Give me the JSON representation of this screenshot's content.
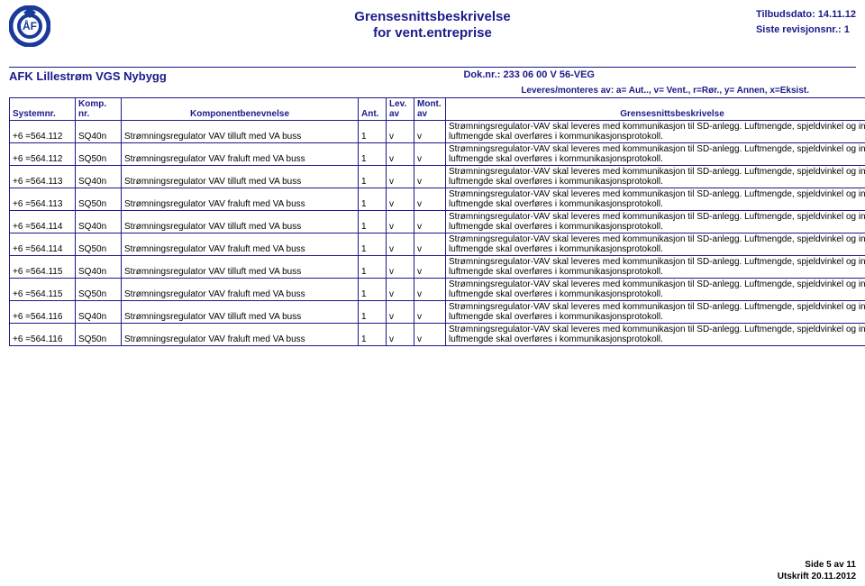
{
  "brand_color": "#1a1a8a",
  "header": {
    "title_line1": "Grensesnittsbeskrivelse",
    "title_line2": "for vent.entreprise",
    "tilbud_label": "Tilbudsdato: 14.11.12",
    "revisjon_label": "Siste revisjonsnr.: 1"
  },
  "subheader": {
    "project": "AFK Lillestrøm VGS Nybygg",
    "doknr": "Dok.nr.: 233 06 00 V 56-VEG"
  },
  "legend": "Leveres/monteres av: a= Aut.., v= Vent., r=Rør., y= Annen, x=Eksist.",
  "columns": {
    "systemnr": "Systemnr.",
    "kompnr_l1": "Komp.",
    "kompnr_l2": "nr.",
    "benevnelse": "Komponentbenevnelse",
    "ant": "Ant.",
    "lev_l1": "Lev.",
    "lev_l2": "av",
    "mont_l1": "Mont.",
    "mont_l2": "av",
    "desc": "Grensesnittsbeskrivelse"
  },
  "desc_text": "Strømningsregulator-VAV skal leveres med kommunikasjon til SD-anlegg. Luftmengde, spjeldvinkel og innstillt luftmengde skal overføres i kommunikasjonsprotokoll.",
  "rows": [
    {
      "sys": "+6 =564.112",
      "komp": "SQ40n",
      "ben": "Strømningsregulator VAV tilluft med VA buss",
      "ant": "1",
      "lev": "v",
      "mont": "v"
    },
    {
      "sys": "+6 =564.112",
      "komp": "SQ50n",
      "ben": "Strømningsregulator VAV fraluft med VA buss",
      "ant": "1",
      "lev": "v",
      "mont": "v"
    },
    {
      "sys": "+6 =564.113",
      "komp": "SQ40n",
      "ben": "Strømningsregulator VAV tilluft med VA buss",
      "ant": "1",
      "lev": "v",
      "mont": "v"
    },
    {
      "sys": "+6 =564.113",
      "komp": "SQ50n",
      "ben": "Strømningsregulator VAV fraluft med VA buss",
      "ant": "1",
      "lev": "v",
      "mont": "v"
    },
    {
      "sys": "+6 =564.114",
      "komp": "SQ40n",
      "ben": "Strømningsregulator VAV tilluft med VA buss",
      "ant": "1",
      "lev": "v",
      "mont": "v"
    },
    {
      "sys": "+6 =564.114",
      "komp": "SQ50n",
      "ben": "Strømningsregulator VAV fraluft med VA buss",
      "ant": "1",
      "lev": "v",
      "mont": "v"
    },
    {
      "sys": "+6 =564.115",
      "komp": "SQ40n",
      "ben": "Strømningsregulator VAV tilluft med VA buss",
      "ant": "1",
      "lev": "v",
      "mont": "v"
    },
    {
      "sys": "+6 =564.115",
      "komp": "SQ50n",
      "ben": "Strømningsregulator VAV fraluft med VA buss",
      "ant": "1",
      "lev": "v",
      "mont": "v"
    },
    {
      "sys": "+6 =564.116",
      "komp": "SQ40n",
      "ben": "Strømningsregulator VAV tilluft med VA buss",
      "ant": "1",
      "lev": "v",
      "mont": "v"
    },
    {
      "sys": "+6 =564.116",
      "komp": "SQ50n",
      "ben": "Strømningsregulator VAV fraluft med VA buss",
      "ant": "1",
      "lev": "v",
      "mont": "v"
    }
  ],
  "footer": {
    "page": "Side 5 av 11",
    "printed": "Utskrift 20.11.2012"
  },
  "logo": {
    "ring_color": "#1a3a9b",
    "text": "ÅF"
  }
}
